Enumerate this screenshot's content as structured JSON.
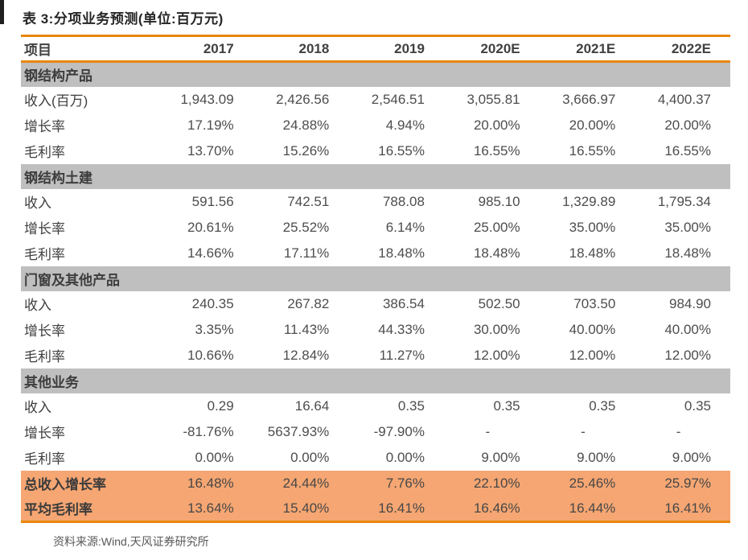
{
  "title": {
    "label": "表 3:分项业务预测(单位:百万元)"
  },
  "table": {
    "columns": [
      "项目",
      "2017",
      "2018",
      "2019",
      "2020E",
      "2021E",
      "2022E"
    ],
    "sections": [
      {
        "header": "钢结构产品",
        "rows": [
          {
            "label": "收入(百万)",
            "values": [
              "1,943.09",
              "2,426.56",
              "2,546.51",
              "3,055.81",
              "3,666.97",
              "4,400.37"
            ]
          },
          {
            "label": "增长率",
            "values": [
              "17.19%",
              "24.88%",
              "4.94%",
              "20.00%",
              "20.00%",
              "20.00%"
            ]
          },
          {
            "label": "毛利率",
            "values": [
              "13.70%",
              "15.26%",
              "16.55%",
              "16.55%",
              "16.55%",
              "16.55%"
            ]
          }
        ]
      },
      {
        "header": "钢结构土建",
        "rows": [
          {
            "label": "收入",
            "values": [
              "591.56",
              "742.51",
              "788.08",
              "985.10",
              "1,329.89",
              "1,795.34"
            ]
          },
          {
            "label": "增长率",
            "values": [
              "20.61%",
              "25.52%",
              "6.14%",
              "25.00%",
              "35.00%",
              "35.00%"
            ]
          },
          {
            "label": "毛利率",
            "values": [
              "14.66%",
              "17.11%",
              "18.48%",
              "18.48%",
              "18.48%",
              "18.48%"
            ]
          }
        ]
      },
      {
        "header": "门窗及其他产品",
        "rows": [
          {
            "label": "收入",
            "values": [
              "240.35",
              "267.82",
              "386.54",
              "502.50",
              "703.50",
              "984.90"
            ]
          },
          {
            "label": "增长率",
            "values": [
              "3.35%",
              "11.43%",
              "44.33%",
              "30.00%",
              "40.00%",
              "40.00%"
            ]
          },
          {
            "label": "毛利率",
            "values": [
              "10.66%",
              "12.84%",
              "11.27%",
              "12.00%",
              "12.00%",
              "12.00%"
            ]
          }
        ]
      },
      {
        "header": "其他业务",
        "rows": [
          {
            "label": "收入",
            "values": [
              "0.29",
              "16.64",
              "0.35",
              "0.35",
              "0.35",
              "0.35"
            ]
          },
          {
            "label": "增长率",
            "values": [
              "-81.76%",
              "5637.93%",
              "-97.90%",
              "-",
              "-",
              "-"
            ]
          },
          {
            "label": "毛利率",
            "values": [
              "0.00%",
              "0.00%",
              "0.00%",
              "9.00%",
              "9.00%",
              "9.00%"
            ]
          }
        ]
      }
    ],
    "summary_rows": [
      {
        "label": "总收入增长率",
        "values": [
          "16.48%",
          "24.44%",
          "7.76%",
          "22.10%",
          "25.46%",
          "25.97%"
        ]
      },
      {
        "label": "平均毛利率",
        "values": [
          "13.64%",
          "15.40%",
          "16.41%",
          "16.46%",
          "16.44%",
          "16.41%"
        ]
      }
    ]
  },
  "footer": {
    "source": "资料来源:Wind,天风证券研究所"
  },
  "colors": {
    "accent_orange": "#e8860d",
    "summary_highlight_bg": "#f5a672",
    "section_band_bg": "#bfbfbf",
    "body_text": "#4d4d4d"
  }
}
